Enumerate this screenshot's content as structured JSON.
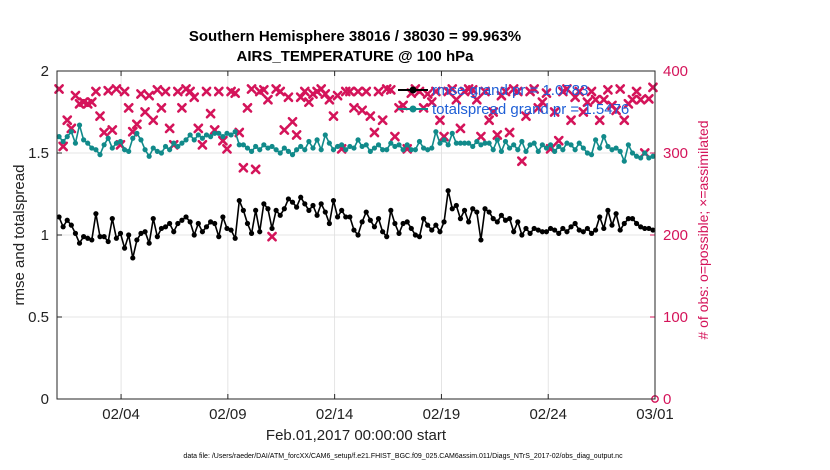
{
  "chart_data": {
    "type": "line",
    "title_line1": "Southern Hemisphere 38016 / 38030 = 99.963%",
    "title_line2": "AIRS_TEMPERATURE @ 100 hPa",
    "xlabel": "Feb.01,2017 00:00:00 start",
    "ylabel_left": "rmse and totalspread",
    "ylabel_right": "# of obs: o=possible; ×=assimilated",
    "xlim": [
      1,
      29
    ],
    "ylim_left": [
      0,
      2
    ],
    "ylim_right": [
      0,
      400
    ],
    "x_ticks": [
      {
        "value": 4,
        "label": "02/04"
      },
      {
        "value": 9,
        "label": "02/09"
      },
      {
        "value": 14,
        "label": "02/14"
      },
      {
        "value": 19,
        "label": "02/19"
      },
      {
        "value": 24,
        "label": "02/24"
      },
      {
        "value": 29,
        "label": "03/01"
      }
    ],
    "y_ticks_left": [
      {
        "value": 0,
        "label": "0"
      },
      {
        "value": 0.5,
        "label": "0.5"
      },
      {
        "value": 1,
        "label": "1"
      },
      {
        "value": 1.5,
        "label": "1.5"
      },
      {
        "value": 2,
        "label": "2"
      }
    ],
    "y_ticks_right": [
      {
        "value": 0,
        "label": "0"
      },
      {
        "value": 100,
        "label": "100"
      },
      {
        "value": 200,
        "label": "200"
      },
      {
        "value": 300,
        "label": "300"
      },
      {
        "value": 400,
        "label": "400"
      }
    ],
    "legend": [
      {
        "label": "rmse grand pr = 1.0783",
        "color": "#000000"
      },
      {
        "label": "totalspread grand pr = 1.5476",
        "color": "#118a8a"
      }
    ],
    "series": [
      {
        "name": "rmse",
        "color": "#000000",
        "values": [
          1.11,
          1.05,
          1.09,
          1.06,
          1.01,
          0.95,
          0.99,
          0.98,
          0.97,
          1.13,
          0.99,
          0.99,
          0.96,
          1.1,
          0.98,
          1.01,
          0.92,
          1.0,
          0.86,
          0.97,
          1.01,
          1.02,
          0.95,
          1.1,
          0.99,
          1.04,
          1.05,
          1.07,
          1.02,
          1.07,
          1.09,
          1.11,
          1.08,
          1.0,
          1.07,
          1.02,
          1.05,
          1.08,
          1.07,
          0.99,
          1.11,
          1.04,
          1.03,
          0.98,
          1.21,
          1.15,
          1.07,
          1.01,
          1.15,
          1.02,
          1.19,
          1.16,
          1.04,
          1.15,
          1.12,
          1.16,
          1.22,
          1.2,
          1.17,
          1.23,
          1.19,
          1.15,
          1.18,
          1.12,
          1.19,
          1.14,
          1.07,
          1.21,
          1.11,
          1.15,
          1.11,
          1.11,
          1.03,
          1.0,
          1.08,
          1.14,
          1.09,
          1.05,
          1.1,
          1.02,
          0.99,
          1.15,
          1.07,
          1.01,
          1.07,
          1.08,
          1.04,
          1.0,
          0.99,
          1.1,
          1.06,
          1.03,
          1.06,
          1.02,
          1.08,
          1.27,
          1.16,
          1.18,
          1.1,
          1.15,
          1.08,
          1.16,
          1.14,
          0.97,
          1.16,
          1.14,
          1.1,
          1.08,
          1.12,
          1.09,
          1.1,
          1.02,
          1.08,
          1.0,
          1.04,
          1.01,
          1.04,
          1.03,
          1.02,
          1.02,
          1.04,
          1.03,
          1.01,
          1.04,
          1.02,
          1.05,
          1.07,
          1.03,
          1.02,
          1.04,
          1.01,
          1.03,
          1.11,
          1.04,
          1.15,
          1.06,
          1.13,
          1.03,
          1.07,
          1.1,
          1.1,
          1.07,
          1.05,
          1.04,
          1.04,
          1.03
        ]
      },
      {
        "name": "totalspread",
        "color": "#118a8a",
        "values": [
          1.6,
          1.57,
          1.6,
          1.63,
          1.56,
          1.67,
          1.58,
          1.56,
          1.53,
          1.52,
          1.49,
          1.55,
          1.59,
          1.53,
          1.56,
          1.57,
          1.52,
          1.51,
          1.59,
          1.62,
          1.58,
          1.52,
          1.48,
          1.53,
          1.51,
          1.5,
          1.54,
          1.52,
          1.56,
          1.54,
          1.56,
          1.58,
          1.61,
          1.58,
          1.61,
          1.59,
          1.61,
          1.6,
          1.62,
          1.62,
          1.6,
          1.62,
          1.61,
          1.63,
          1.55,
          1.55,
          1.53,
          1.51,
          1.54,
          1.52,
          1.55,
          1.53,
          1.54,
          1.52,
          1.5,
          1.53,
          1.51,
          1.49,
          1.52,
          1.54,
          1.52,
          1.57,
          1.53,
          1.58,
          1.52,
          1.61,
          1.56,
          1.52,
          1.54,
          1.55,
          1.52,
          1.54,
          1.53,
          1.58,
          1.54,
          1.55,
          1.51,
          1.53,
          1.55,
          1.52,
          1.52,
          1.56,
          1.54,
          1.55,
          1.52,
          1.55,
          1.52,
          1.52,
          1.57,
          1.53,
          1.52,
          1.53,
          1.63,
          1.56,
          1.58,
          1.55,
          1.62,
          1.56,
          1.56,
          1.56,
          1.56,
          1.54,
          1.57,
          1.55,
          1.56,
          1.56,
          1.52,
          1.58,
          1.51,
          1.57,
          1.53,
          1.55,
          1.52,
          1.57,
          1.51,
          1.55,
          1.56,
          1.51,
          1.55,
          1.53,
          1.55,
          1.51,
          1.54,
          1.52,
          1.56,
          1.55,
          1.52,
          1.56,
          1.53,
          1.5,
          1.49,
          1.58,
          1.53,
          1.6,
          1.54,
          1.52,
          1.53,
          1.51,
          1.45,
          1.55,
          1.5,
          1.48,
          1.47,
          1.5,
          1.47,
          1.48
        ]
      }
    ],
    "obs_possible": [
      0,
      0,
      0,
      0,
      0,
      0,
      0,
      0,
      0,
      0,
      0,
      0,
      0,
      0,
      0,
      0,
      0,
      0,
      0,
      0,
      0,
      0,
      0,
      0,
      0,
      0,
      0,
      0,
      0,
      0,
      0,
      0,
      0,
      0,
      0,
      0,
      0,
      0,
      0,
      0,
      0,
      0,
      0,
      0,
      0,
      0,
      0,
      0,
      0,
      0,
      0,
      0,
      0,
      0,
      0,
      0,
      0,
      0,
      0,
      0,
      0,
      0,
      0,
      0,
      0,
      0,
      0,
      0,
      0,
      0,
      0,
      0,
      0,
      0,
      0,
      0,
      0,
      0,
      0,
      0,
      0,
      0,
      0,
      0,
      0,
      0,
      0,
      0,
      0,
      0,
      0,
      0,
      0,
      0,
      0,
      0,
      0,
      0,
      0,
      0,
      0,
      0,
      0,
      0,
      0,
      0,
      0,
      0,
      0,
      0,
      0,
      0,
      0,
      0,
      0,
      0,
      0,
      0,
      0,
      0,
      0,
      0,
      0,
      0,
      0,
      0,
      0,
      0,
      0,
      0,
      0,
      0,
      0,
      0,
      0,
      0,
      0,
      0,
      0,
      0,
      0,
      0,
      0,
      0,
      0,
      0
    ],
    "obs_assimilated": [
      378,
      308,
      340,
      330,
      370,
      360,
      362,
      360,
      362,
      375,
      345,
      325,
      376,
      328,
      378,
      310,
      375,
      355,
      326,
      335,
      372,
      350,
      370,
      340,
      377,
      355,
      375,
      330,
      310,
      375,
      355,
      378,
      375,
      368,
      330,
      310,
      375,
      348,
      328,
      375,
      315,
      305,
      375,
      373,
      325,
      282,
      355,
      378,
      280,
      375,
      377,
      365,
      198,
      378,
      375,
      328,
      368,
      338,
      322,
      368,
      375,
      362,
      372,
      375,
      378,
      372,
      365,
      345,
      370,
      305,
      375,
      375,
      355,
      375,
      352,
      375,
      345,
      325,
      375,
      340,
      378,
      377,
      320,
      355,
      358,
      305,
      373,
      378,
      375,
      355,
      372,
      362,
      375,
      340,
      320,
      375,
      378,
      365,
      330,
      375,
      378,
      377,
      365,
      320,
      375,
      340,
      350,
      322,
      370,
      375,
      325,
      378,
      375,
      290,
      345,
      375,
      378,
      355,
      362,
      373,
      305,
      350,
      315,
      375,
      378,
      340,
      368,
      375,
      350,
      362,
      375,
      365,
      340,
      365,
      377,
      358,
      352,
      378,
      340,
      360,
      365,
      375,
      365,
      300,
      366,
      380
    ]
  },
  "footer": {
    "datafile": "data file: /Users/raeder/DAI/ATM_forcXX/CAM6_setup/f.e21.FHIST_BGC.f09_025.CAM6assim.011/Diags_NTrS_2017-02/obs_diag_output.nc"
  },
  "colors": {
    "rmse": "#000000",
    "spread": "#118a8a",
    "obs": "#d4145a",
    "legend_text": "#1f5fd6",
    "grid": "#dedede"
  }
}
